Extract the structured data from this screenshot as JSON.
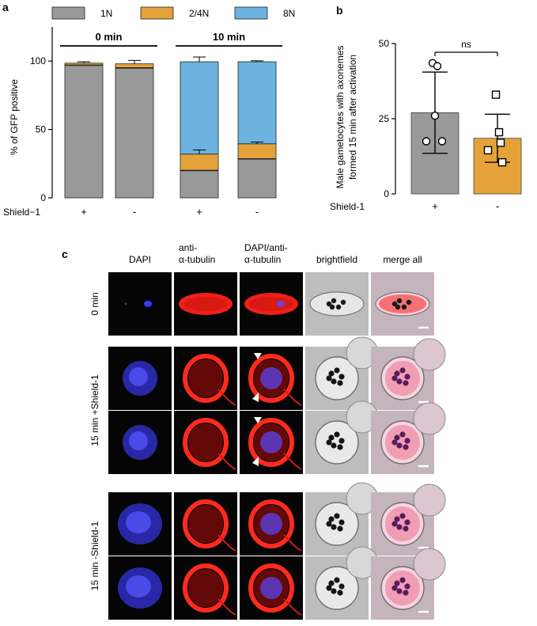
{
  "panel_labels": [
    "a",
    "b",
    "c"
  ],
  "colors": {
    "1N": "#999999",
    "2/4N": "#E5A23A",
    "8N": "#6CB3DF",
    "plus_bar": "#999999",
    "minus_bar": "#E5A23A"
  },
  "chart_data": [
    {
      "id": "a",
      "type": "bar",
      "stacked": true,
      "title": "",
      "xlabel": "",
      "ylabel": "% of GFP positive",
      "ylim": [
        0,
        125
      ],
      "yticks": [
        0,
        50,
        100
      ],
      "legend": {
        "placement": "top",
        "entries": [
          "1N",
          "2/4N",
          "8N"
        ]
      },
      "groups": [
        {
          "label": "0 min",
          "members": [
            0,
            1
          ]
        },
        {
          "label": "10 min",
          "members": [
            2,
            3
          ]
        }
      ],
      "row_label": "Shield−1",
      "categories": [
        "+",
        "-",
        "+",
        "-"
      ],
      "series": [
        {
          "name": "1N",
          "values": [
            97,
            95,
            20,
            28.5
          ]
        },
        {
          "name": "2/4N",
          "values": [
            1.5,
            3,
            12,
            11
          ]
        },
        {
          "name": "8N",
          "values": [
            0,
            0,
            67.5,
            60
          ]
        }
      ],
      "error_tops": [
        99.5,
        100.5,
        103,
        100.2
      ],
      "inner_error_tops": [
        null,
        null,
        35,
        40.8
      ]
    },
    {
      "id": "b",
      "type": "bar",
      "title": "",
      "xlabel": "",
      "ylabel": "Male gametocytes with axonemes formed 15 min after activation",
      "ylim": [
        0,
        50
      ],
      "yticks": [
        0,
        25,
        50
      ],
      "row_label": "Shield-1",
      "categories": [
        "+",
        "-"
      ],
      "values": [
        27,
        18.5
      ],
      "errors": [
        [
          13.5,
          40.5
        ],
        [
          10.5,
          26.5
        ]
      ],
      "points": [
        {
          "marker": "circle",
          "values": [
            43.5,
            42.5,
            26,
            17.5,
            17.5
          ]
        },
        {
          "marker": "square",
          "values": [
            33,
            20.5,
            17,
            14.5,
            10.5
          ]
        }
      ],
      "significance": "ns"
    }
  ],
  "micrograph_panel": {
    "column_headers": [
      {
        "line1": "DAPI",
        "line2": ""
      },
      {
        "line1": "anti-",
        "line2": "α-tubulin"
      },
      {
        "line1": "DAPI/anti-",
        "line2": "α-tubulin"
      },
      {
        "line1": "brightfield",
        "line2": ""
      },
      {
        "line1": "merge all",
        "line2": ""
      }
    ],
    "row_groups": [
      {
        "label": "0 min",
        "rows": 1
      },
      {
        "label": "15  min +Shield-1",
        "rows": 2
      },
      {
        "label": "15 min -Shield-1",
        "rows": 2
      }
    ]
  }
}
